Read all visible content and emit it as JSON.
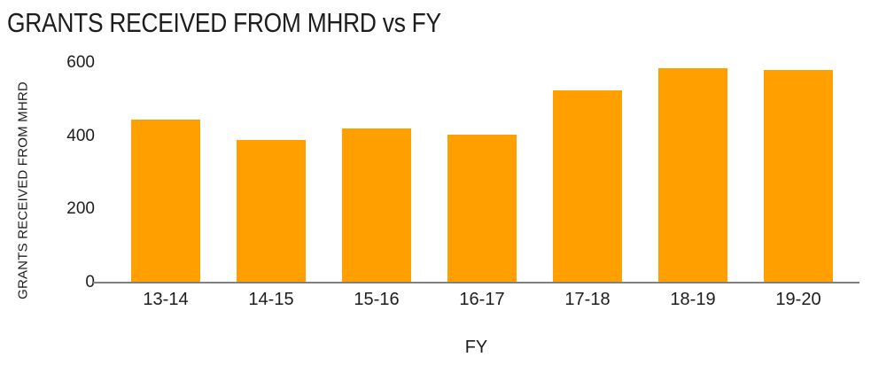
{
  "title": "GRANTS RECEIVED FROM MHRD vs FY",
  "chart_data": {
    "type": "bar",
    "title": "GRANTS RECEIVED FROM MHRD vs FY",
    "categories": [
      "13-14",
      "14-15",
      "15-16",
      "16-17",
      "17-18",
      "18-19",
      "19-20"
    ],
    "values": [
      445,
      390,
      420,
      405,
      525,
      585,
      580
    ],
    "xlabel": "FY",
    "ylabel": "GRANTS RECEIVED FROM MHRD",
    "ylim": [
      0,
      600
    ],
    "yticks": [
      0,
      200,
      400,
      600
    ],
    "grid": false,
    "legend": false,
    "colors": {
      "bar": "#FFA000",
      "axis_line": "#808080",
      "text": "#1d1d1d",
      "background": "#ffffff"
    }
  }
}
